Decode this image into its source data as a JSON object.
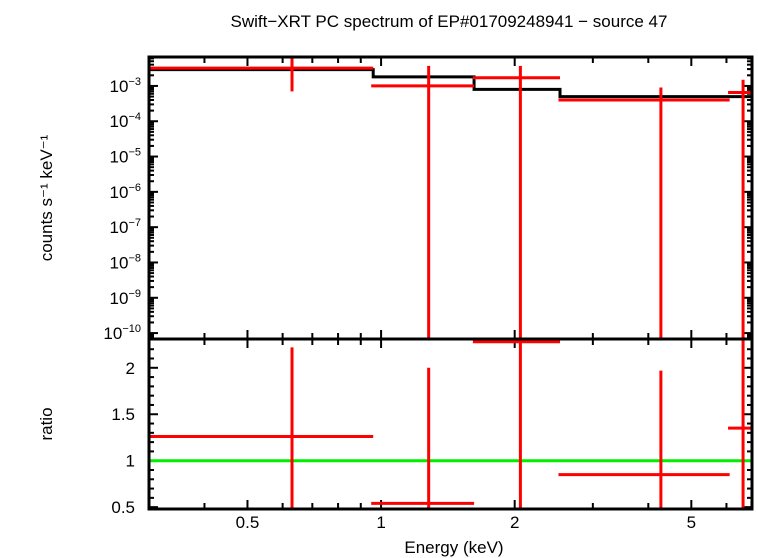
{
  "chart_data": [
    {
      "type": "line",
      "panel": "spectrum",
      "title": "Swift−XRT PC spectrum of EP#01709248941 − source 47",
      "xlabel": "Energy (keV)",
      "ylabel": "counts s⁻¹ keV⁻¹",
      "xscale": "log",
      "yscale": "log",
      "xlim": [
        0.3,
        6.85
      ],
      "ylim": [
        6.8e-11,
        0.0066
      ],
      "yticks": [
        {
          "exp": "−3",
          "value": 0.001
        },
        {
          "exp": "−4",
          "value": 0.0001
        },
        {
          "exp": "−5",
          "value": 1e-05
        },
        {
          "exp": "−6",
          "value": 1e-06
        },
        {
          "exp": "−7",
          "value": 1e-07
        },
        {
          "exp": "−8",
          "value": 1e-08
        },
        {
          "exp": "−9",
          "value": 1e-09
        },
        {
          "exp": "−10",
          "value": 1e-10
        }
      ],
      "data": [
        {
          "x": 0.63,
          "xlo": 0.3,
          "xhi": 0.96,
          "y": 0.0032,
          "ylo": 0.0007,
          "yhi": 0.0066
        },
        {
          "x": 1.28,
          "xlo": 0.95,
          "xhi": 1.62,
          "y": 0.001,
          "ylo": 0,
          "yhi": 0.0037
        },
        {
          "x": 2.06,
          "xlo": 1.61,
          "xhi": 2.53,
          "y": 0.0017,
          "ylo": 0,
          "yhi": 0.0037
        },
        {
          "x": 4.27,
          "xlo": 2.51,
          "xhi": 6.1,
          "y": 0.0004,
          "ylo": 0,
          "yhi": 0.0009
        },
        {
          "x": 6.54,
          "xlo": 6.05,
          "xhi": 6.85,
          "y": 0.00065,
          "ylo": 0,
          "yhi": 0.0015
        }
      ],
      "model": [
        {
          "xlo": 0.3,
          "xhi": 0.96,
          "y": 0.0029
        },
        {
          "xlo": 0.96,
          "xhi": 1.62,
          "y": 0.0018
        },
        {
          "xlo": 1.62,
          "xhi": 2.53,
          "y": 0.0008
        },
        {
          "xlo": 2.53,
          "xhi": 6.85,
          "y": 0.0005
        }
      ],
      "colors": {
        "data": "#ff0000",
        "model": "#000000"
      }
    },
    {
      "type": "line",
      "panel": "ratio",
      "xlabel": "Energy (keV)",
      "ylabel": "ratio",
      "xscale": "log",
      "xlim": [
        0.3,
        6.85
      ],
      "ylim": [
        0.48,
        2.31
      ],
      "xticks": [
        {
          "label": "0.5",
          "value": 0.5
        },
        {
          "label": "1",
          "value": 1
        },
        {
          "label": "2",
          "value": 2
        },
        {
          "label": "5",
          "value": 5
        }
      ],
      "yticks": [
        {
          "label": "0.5",
          "value": 0.5
        },
        {
          "label": "1",
          "value": 1
        },
        {
          "label": "1.5",
          "value": 1.5
        },
        {
          "label": "2",
          "value": 2
        }
      ],
      "data": [
        {
          "x": 0.63,
          "xlo": 0.3,
          "xhi": 0.96,
          "y": 1.26,
          "ylo": 0,
          "yhi": 2.22
        },
        {
          "x": 1.28,
          "xlo": 0.95,
          "xhi": 1.62,
          "y": 0.54,
          "ylo": 0,
          "yhi": 2.0
        },
        {
          "x": 2.06,
          "xlo": 1.61,
          "xhi": 2.53,
          "y": 2.28,
          "ylo": 0,
          "yhi": 3
        },
        {
          "x": 4.27,
          "xlo": 2.51,
          "xhi": 6.1,
          "y": 0.85,
          "ylo": 0,
          "yhi": 1.97
        },
        {
          "x": 6.54,
          "xlo": 6.05,
          "xhi": 6.85,
          "y": 1.35,
          "ylo": 0,
          "yhi": 3
        }
      ],
      "reference_line": 1,
      "colors": {
        "data": "#ff0000",
        "reference": "#00ee00"
      }
    }
  ]
}
